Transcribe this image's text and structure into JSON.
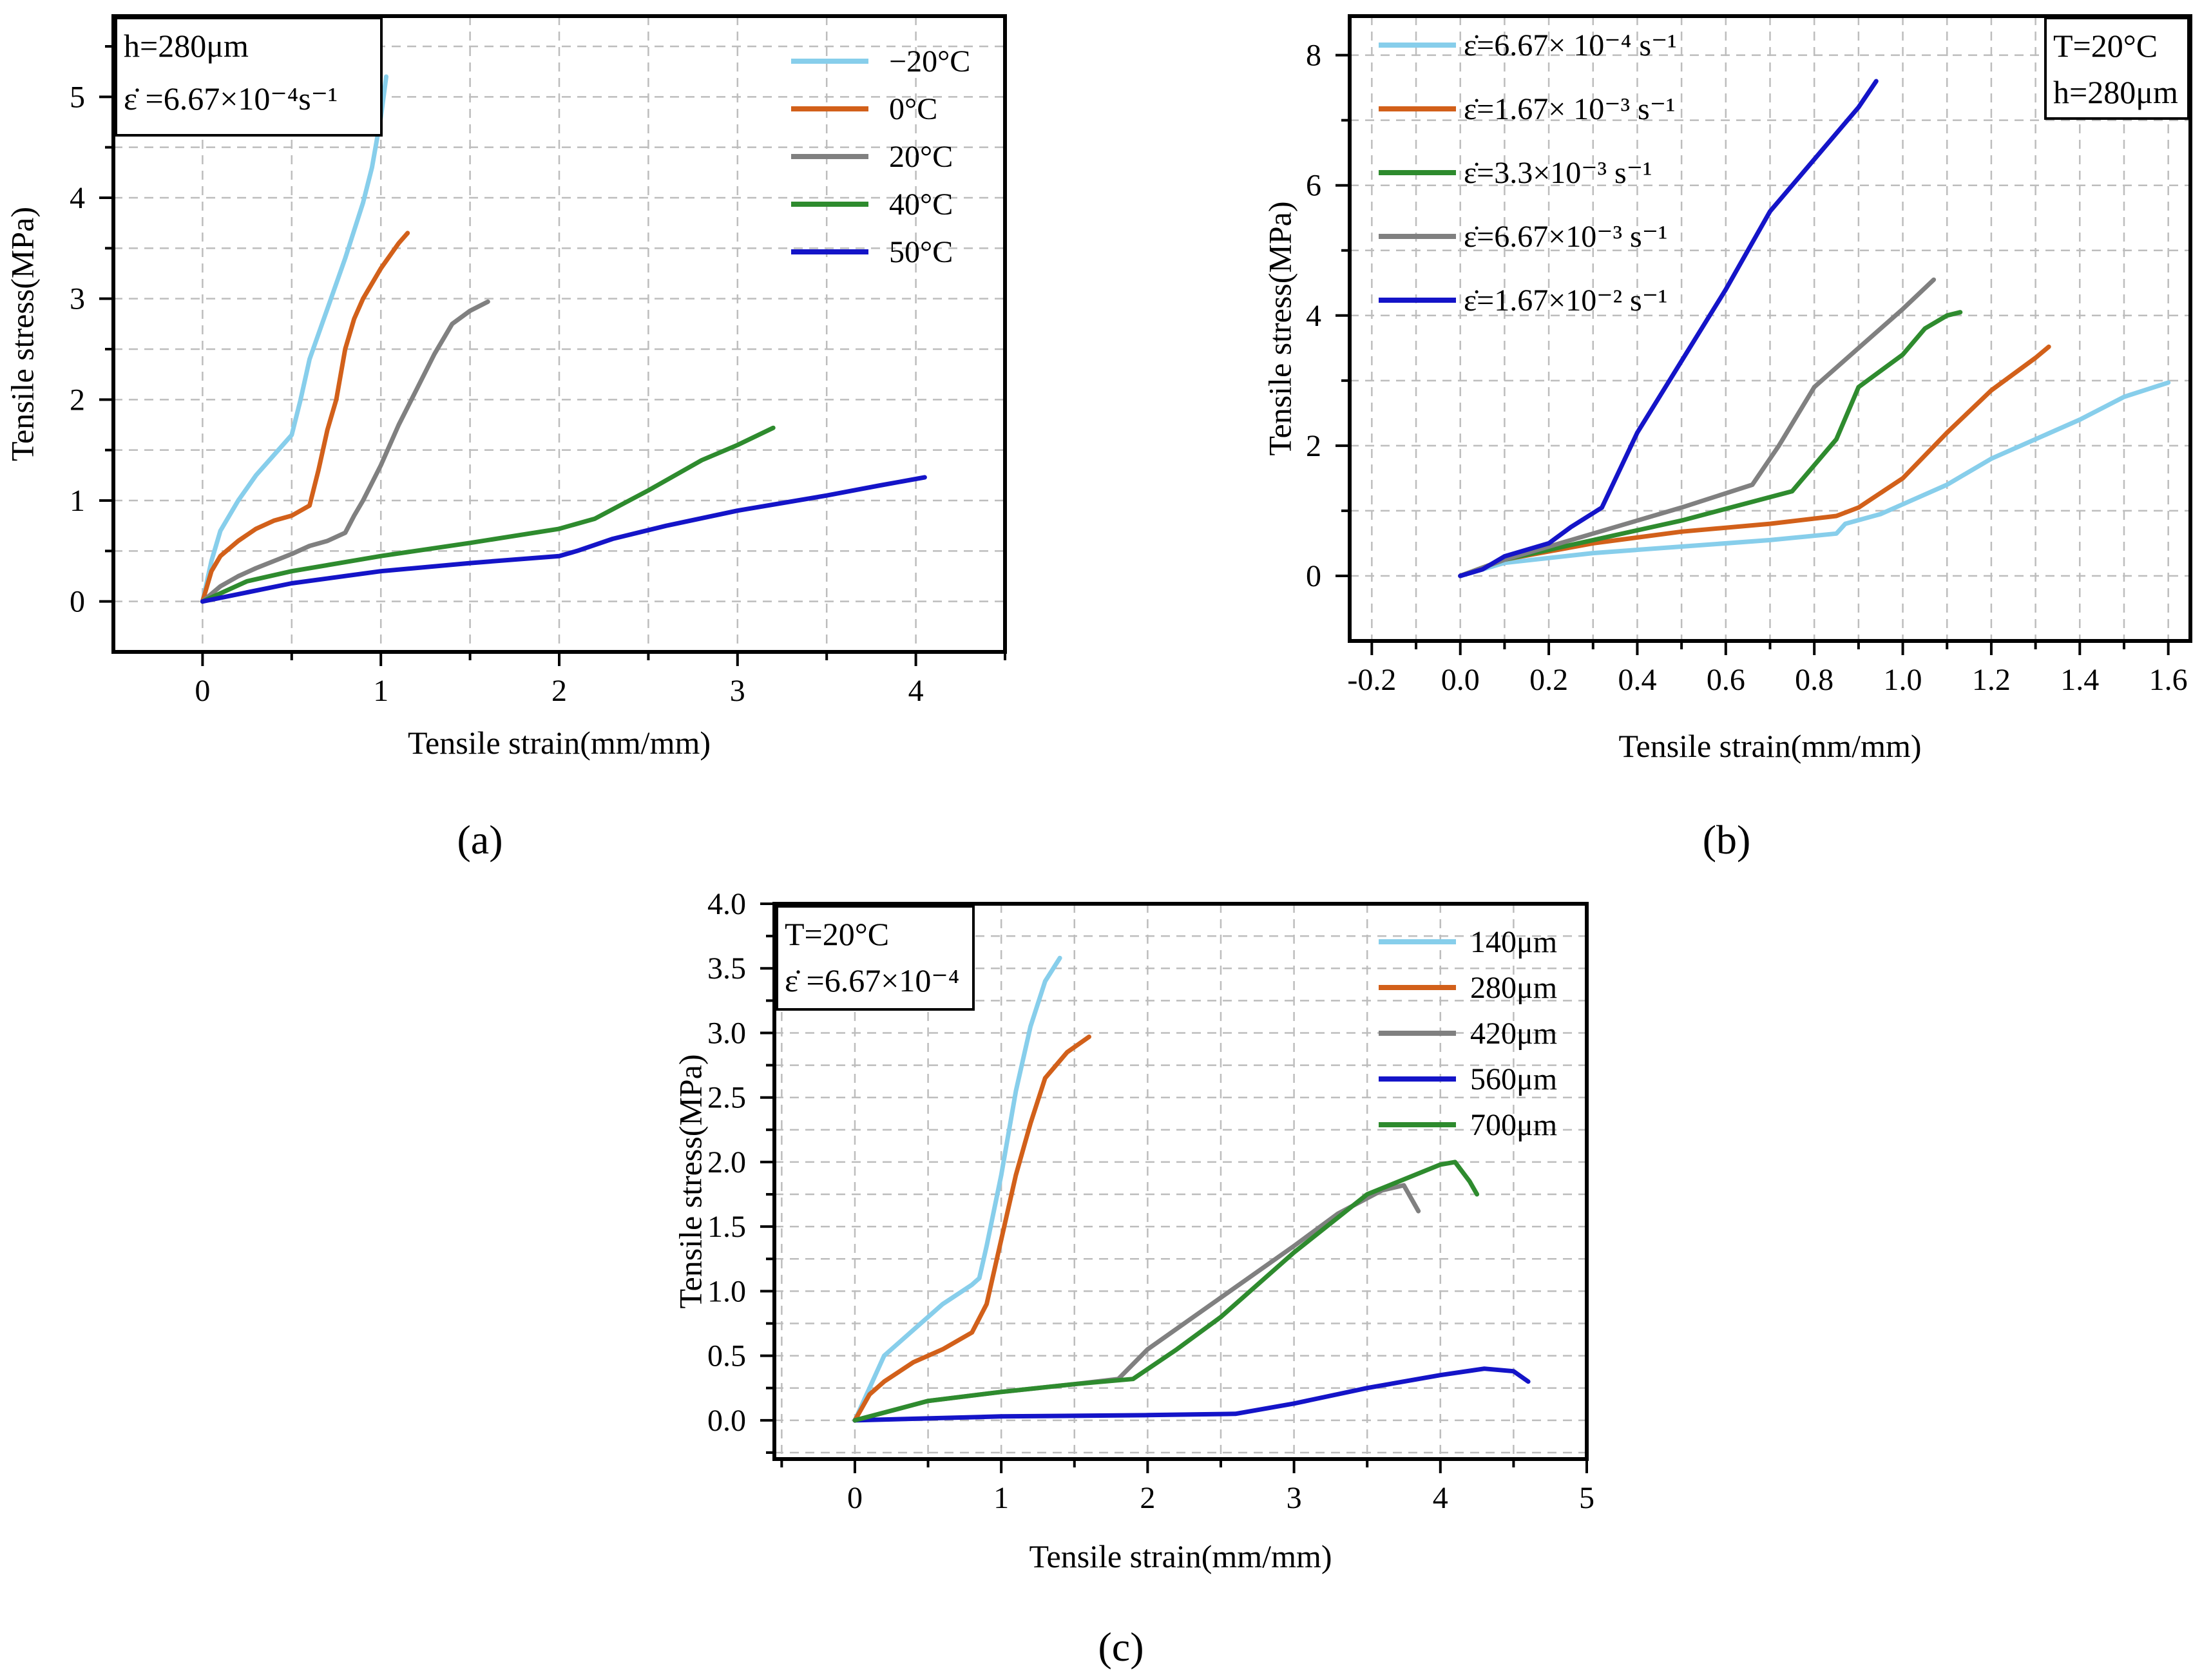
{
  "chart_data": [
    {
      "type": "line",
      "panel": "(a)",
      "panel_letter": "a",
      "xlabel": "Tensile strain(mm/mm)",
      "ylabel": "Tensile stress(MPa)",
      "xlim": [
        -0.5,
        4.5
      ],
      "ylim": [
        -0.5,
        5.8
      ],
      "xticks": [
        0,
        1,
        2,
        3,
        4
      ],
      "xtick_labels": [
        "0",
        "1",
        "2",
        "3",
        "4"
      ],
      "yticks": [
        0,
        1,
        2,
        3,
        4,
        5
      ],
      "ytick_labels": [
        "0",
        "1",
        "2",
        "3",
        "4",
        "5"
      ],
      "legend_position": "top-right",
      "annotation_lines": [
        "h=280μm",
        "ε̇ =6.67×10⁻⁴s⁻¹"
      ],
      "series": [
        {
          "name": "−20°C",
          "color": "#87CEEB",
          "x": [
            0,
            0.05,
            0.1,
            0.2,
            0.3,
            0.4,
            0.5,
            0.55,
            0.6,
            0.7,
            0.8,
            0.9,
            0.95,
            1.0,
            1.03
          ],
          "y": [
            0,
            0.4,
            0.7,
            1.0,
            1.25,
            1.45,
            1.65,
            2.0,
            2.4,
            2.9,
            3.4,
            3.95,
            4.3,
            4.8,
            5.2
          ]
        },
        {
          "name": "0°C",
          "color": "#D2601A",
          "x": [
            0,
            0.05,
            0.1,
            0.2,
            0.3,
            0.4,
            0.5,
            0.6,
            0.65,
            0.7,
            0.75,
            0.8,
            0.85,
            0.9,
            1.0,
            1.1,
            1.15
          ],
          "y": [
            0,
            0.3,
            0.45,
            0.6,
            0.72,
            0.8,
            0.85,
            0.95,
            1.3,
            1.7,
            2.0,
            2.5,
            2.8,
            3.0,
            3.3,
            3.55,
            3.65
          ]
        },
        {
          "name": "20°C",
          "color": "#808080",
          "x": [
            0,
            0.1,
            0.2,
            0.3,
            0.4,
            0.5,
            0.6,
            0.7,
            0.8,
            0.85,
            0.9,
            1.0,
            1.1,
            1.2,
            1.3,
            1.4,
            1.5,
            1.6
          ],
          "y": [
            0,
            0.15,
            0.25,
            0.33,
            0.4,
            0.47,
            0.55,
            0.6,
            0.68,
            0.85,
            1.0,
            1.35,
            1.75,
            2.1,
            2.45,
            2.75,
            2.88,
            2.97
          ]
        },
        {
          "name": "40°C",
          "color": "#2E8B2E",
          "x": [
            0,
            0.25,
            0.5,
            1.0,
            1.5,
            2.0,
            2.2,
            2.5,
            2.8,
            3.0,
            3.2
          ],
          "y": [
            0,
            0.2,
            0.3,
            0.45,
            0.58,
            0.72,
            0.82,
            1.1,
            1.4,
            1.55,
            1.72
          ]
        },
        {
          "name": "50°C",
          "color": "#1414C8",
          "x": [
            0,
            0.5,
            1.0,
            1.5,
            2.0,
            2.1,
            2.3,
            2.6,
            3.0,
            3.5,
            3.8,
            4.05
          ],
          "y": [
            0,
            0.18,
            0.3,
            0.38,
            0.45,
            0.5,
            0.62,
            0.75,
            0.9,
            1.05,
            1.15,
            1.23
          ]
        }
      ]
    },
    {
      "type": "line",
      "panel": "(b)",
      "panel_letter": "b",
      "xlabel": "Tensile strain(mm/mm)",
      "ylabel": "Tensile stress(MPa)",
      "xlim": [
        -0.25,
        1.65
      ],
      "ylim": [
        -1.0,
        8.6
      ],
      "xticks": [
        -0.2,
        0.0,
        0.2,
        0.4,
        0.6,
        0.8,
        1.0,
        1.2,
        1.4,
        1.6
      ],
      "xtick_labels": [
        "-0.2",
        "0.0",
        "0.2",
        "0.4",
        "0.6",
        "0.8",
        "1.0",
        "1.2",
        "1.4",
        "1.6"
      ],
      "yticks": [
        0,
        2,
        4,
        6,
        8
      ],
      "ytick_labels": [
        "0",
        "2",
        "4",
        "6",
        "8"
      ],
      "legend_position": "top-left",
      "annotation_lines": [
        "T=20°C",
        "h=280μm"
      ],
      "series": [
        {
          "name": "ε̇=6.67× 10⁻⁴ s⁻¹",
          "color": "#87CEEB",
          "x": [
            0,
            0.1,
            0.3,
            0.5,
            0.7,
            0.85,
            0.87,
            0.95,
            1.1,
            1.2,
            1.4,
            1.5,
            1.6
          ],
          "y": [
            0,
            0.2,
            0.35,
            0.45,
            0.55,
            0.65,
            0.8,
            0.95,
            1.4,
            1.8,
            2.4,
            2.75,
            2.97
          ]
        },
        {
          "name": "ε̇=1.67× 10⁻³ s⁻¹",
          "color": "#D2601A",
          "x": [
            0,
            0.1,
            0.3,
            0.5,
            0.7,
            0.85,
            0.9,
            1.0,
            1.1,
            1.2,
            1.3,
            1.33
          ],
          "y": [
            0,
            0.25,
            0.5,
            0.68,
            0.8,
            0.92,
            1.05,
            1.5,
            2.2,
            2.85,
            3.35,
            3.52
          ]
        },
        {
          "name": "ε̇=3.3×10⁻³ s⁻¹",
          "color": "#2E8B2E",
          "x": [
            0,
            0.1,
            0.3,
            0.5,
            0.75,
            0.85,
            0.9,
            1.0,
            1.05,
            1.1,
            1.13
          ],
          "y": [
            0,
            0.25,
            0.55,
            0.85,
            1.3,
            2.1,
            2.9,
            3.4,
            3.8,
            4.0,
            4.05
          ]
        },
        {
          "name": "ε̇=6.67×10⁻³ s⁻¹",
          "color": "#808080",
          "x": [
            0,
            0.1,
            0.3,
            0.5,
            0.66,
            0.72,
            0.8,
            0.9,
            1.0,
            1.07
          ],
          "y": [
            0,
            0.25,
            0.65,
            1.05,
            1.4,
            2.0,
            2.9,
            3.5,
            4.1,
            4.55
          ]
        },
        {
          "name": "ε̇=1.67×10⁻²  s⁻¹",
          "color": "#1414C8",
          "x": [
            0,
            0.05,
            0.1,
            0.2,
            0.25,
            0.32,
            0.4,
            0.5,
            0.6,
            0.7,
            0.8,
            0.9,
            0.94
          ],
          "y": [
            0,
            0.1,
            0.3,
            0.5,
            0.75,
            1.05,
            2.2,
            3.3,
            4.4,
            5.6,
            6.4,
            7.2,
            7.6
          ]
        }
      ]
    },
    {
      "type": "line",
      "panel": "(c)",
      "panel_letter": "c",
      "xlabel": "Tensile strain(mm/mm)",
      "ylabel": "Tensile stress(MPa)",
      "xlim": [
        -0.55,
        5.0
      ],
      "ylim": [
        -0.3,
        4.0
      ],
      "xticks": [
        0,
        1,
        2,
        3,
        4,
        5
      ],
      "xtick_labels": [
        "0",
        "1",
        "2",
        "3",
        "4",
        "5"
      ],
      "yticks": [
        0.0,
        0.5,
        1.0,
        1.5,
        2.0,
        2.5,
        3.0,
        3.5,
        4.0
      ],
      "ytick_labels": [
        "0.0",
        "0.5",
        "1.0",
        "1.5",
        "2.0",
        "2.5",
        "3.0",
        "3.5",
        "4.0"
      ],
      "legend_position": "top-right",
      "annotation_lines": [
        "T=20°C",
        "ε̇ =6.67×10⁻⁴"
      ],
      "series": [
        {
          "name": "140μm",
          "color": "#87CEEB",
          "x": [
            0,
            0.1,
            0.2,
            0.4,
            0.6,
            0.8,
            0.85,
            0.9,
            1.0,
            1.1,
            1.2,
            1.3,
            1.4
          ],
          "y": [
            0,
            0.25,
            0.5,
            0.7,
            0.9,
            1.05,
            1.1,
            1.35,
            1.9,
            2.55,
            3.05,
            3.4,
            3.58
          ]
        },
        {
          "name": "280μm",
          "color": "#D2601A",
          "x": [
            0,
            0.1,
            0.2,
            0.4,
            0.6,
            0.8,
            0.9,
            1.0,
            1.1,
            1.2,
            1.3,
            1.45,
            1.6
          ],
          "y": [
            0,
            0.2,
            0.3,
            0.45,
            0.55,
            0.68,
            0.9,
            1.4,
            1.9,
            2.3,
            2.65,
            2.85,
            2.97
          ]
        },
        {
          "name": "420μm",
          "color": "#808080",
          "x": [
            0,
            0.5,
            1.0,
            1.5,
            1.8,
            2.0,
            2.5,
            3.0,
            3.3,
            3.6,
            3.75,
            3.85
          ],
          "y": [
            0,
            0.15,
            0.22,
            0.28,
            0.32,
            0.55,
            0.95,
            1.35,
            1.6,
            1.78,
            1.82,
            1.62
          ]
        },
        {
          "name": "560μm",
          "color": "#1414C8",
          "x": [
            0,
            1.0,
            2.0,
            2.6,
            3.0,
            3.5,
            4.0,
            4.3,
            4.5,
            4.6
          ],
          "y": [
            0,
            0.03,
            0.04,
            0.05,
            0.13,
            0.25,
            0.35,
            0.4,
            0.38,
            0.3
          ]
        },
        {
          "name": "700μm",
          "color": "#2E8B2E",
          "x": [
            0,
            0.5,
            1.0,
            1.5,
            1.9,
            2.2,
            2.5,
            3.0,
            3.5,
            4.0,
            4.1,
            4.2,
            4.25
          ],
          "y": [
            0,
            0.15,
            0.22,
            0.28,
            0.32,
            0.55,
            0.8,
            1.3,
            1.75,
            1.98,
            2.0,
            1.85,
            1.75
          ]
        }
      ]
    }
  ]
}
